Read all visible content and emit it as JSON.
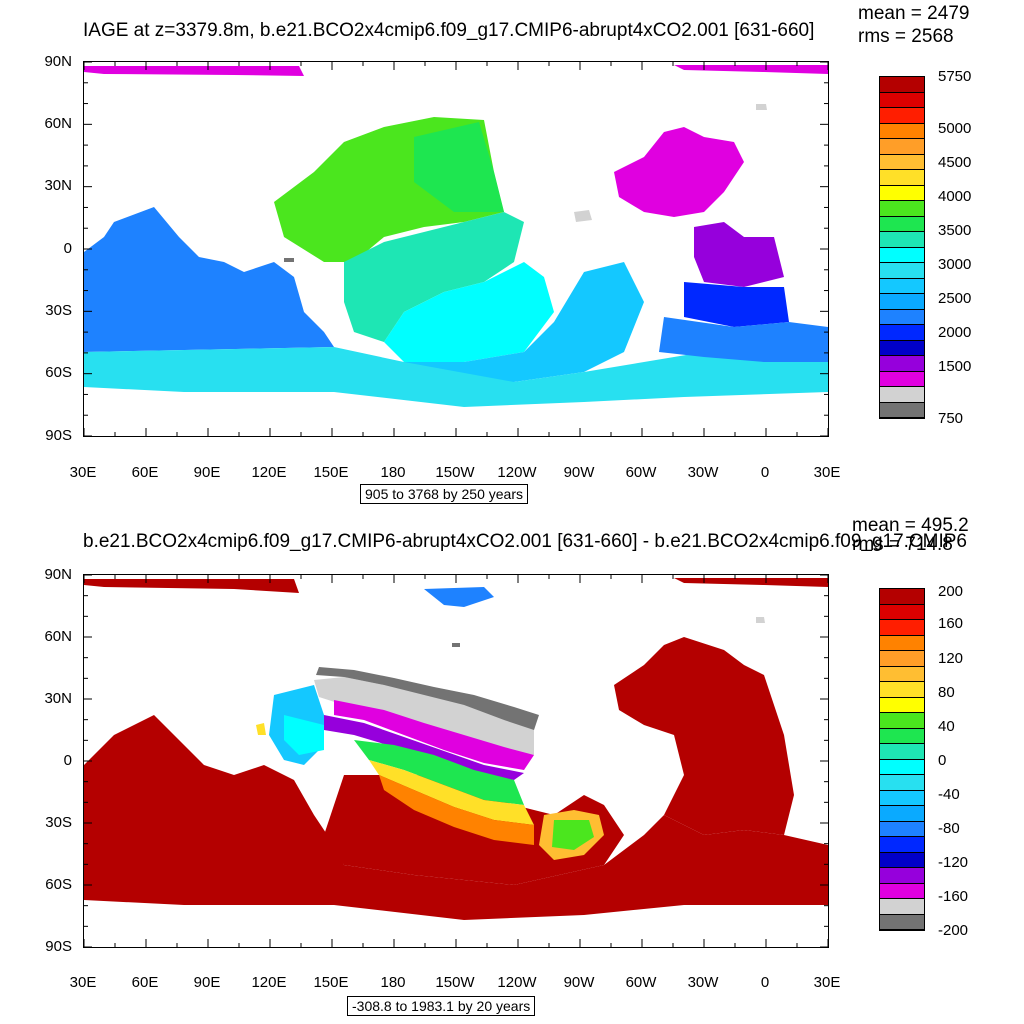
{
  "top_panel": {
    "title": "IAGE at z=3379.8m, b.e21.BCO2x4cmip6.f09_g17.CMIP6-abrupt4xCO2.001 [631-660]",
    "mean": "mean = 2479",
    "rms": "rms = 2568",
    "info": "905 to 3768 by 250 years",
    "lat_labels": [
      "90N",
      "60N",
      "30N",
      "0",
      "30S",
      "60S",
      "90S"
    ],
    "lon_labels": [
      "30E",
      "60E",
      "90E",
      "120E",
      "150E",
      "180",
      "150W",
      "120W",
      "90W",
      "60W",
      "30W",
      "0",
      "30E"
    ],
    "colorbar_labels": [
      "5750",
      "5000",
      "4500",
      "4000",
      "3500",
      "3000",
      "2500",
      "2000",
      "1500",
      "750"
    ],
    "colorbar_colors": [
      "#b40000",
      "#dc0000",
      "#ff1e00",
      "#ff8200",
      "#ff9e28",
      "#ffbe32",
      "#ffe028",
      "#ffff00",
      "#4be61e",
      "#1ee650",
      "#1ee6b4",
      "#00ffff",
      "#28e0f0",
      "#14c8ff",
      "#0aaaff",
      "#1e82ff",
      "#0028ff",
      "#0000c8",
      "#9600dc",
      "#e000e0",
      "#d2d2d2",
      "#737373"
    ]
  },
  "bottom_panel": {
    "title": "b.e21.BCO2x4cmip6.f09_g17.CMIP6-abrupt4xCO2.001 [631-660] - b.e21.BCO2x4cmip6.f09_g17.CMIP6",
    "mean": "mean = 495.2",
    "rms": "rms = 714.8",
    "info": "-308.8 to 1983.1 by 20 years",
    "lat_labels": [
      "90N",
      "60N",
      "30N",
      "0",
      "30S",
      "60S",
      "90S"
    ],
    "lon_labels": [
      "30E",
      "60E",
      "90E",
      "120E",
      "150E",
      "180",
      "150W",
      "120W",
      "90W",
      "60W",
      "30W",
      "0",
      "30E"
    ],
    "colorbar_labels": [
      "200",
      "160",
      "120",
      "80",
      "40",
      "0",
      "-40",
      "-80",
      "-120",
      "-160",
      "-200"
    ],
    "colorbar_colors": [
      "#b40000",
      "#dc0000",
      "#ff1e00",
      "#ff8200",
      "#ff9e28",
      "#ffbe32",
      "#ffe028",
      "#ffff00",
      "#4be61e",
      "#1ee650",
      "#1ee6b4",
      "#00ffff",
      "#28e0f0",
      "#14c8ff",
      "#0aaaff",
      "#1e82ff",
      "#0028ff",
      "#0000c8",
      "#9600dc",
      "#e000e0",
      "#d2d2d2",
      "#737373"
    ]
  },
  "field_colors": {
    "old_green": "#4be61e",
    "green": "#1ee650",
    "aqua": "#1ee6b4",
    "cyan": "#00ffff",
    "light_cyan": "#28e0f0",
    "sky": "#14c8ff",
    "blue": "#1e82ff",
    "deep_blue": "#0028ff",
    "purple": "#9600dc",
    "magenta": "#e000e0",
    "gray": "#d2d2d2",
    "dark_gray": "#737373",
    "dark_red": "#b40000",
    "red": "#dc0000"
  }
}
